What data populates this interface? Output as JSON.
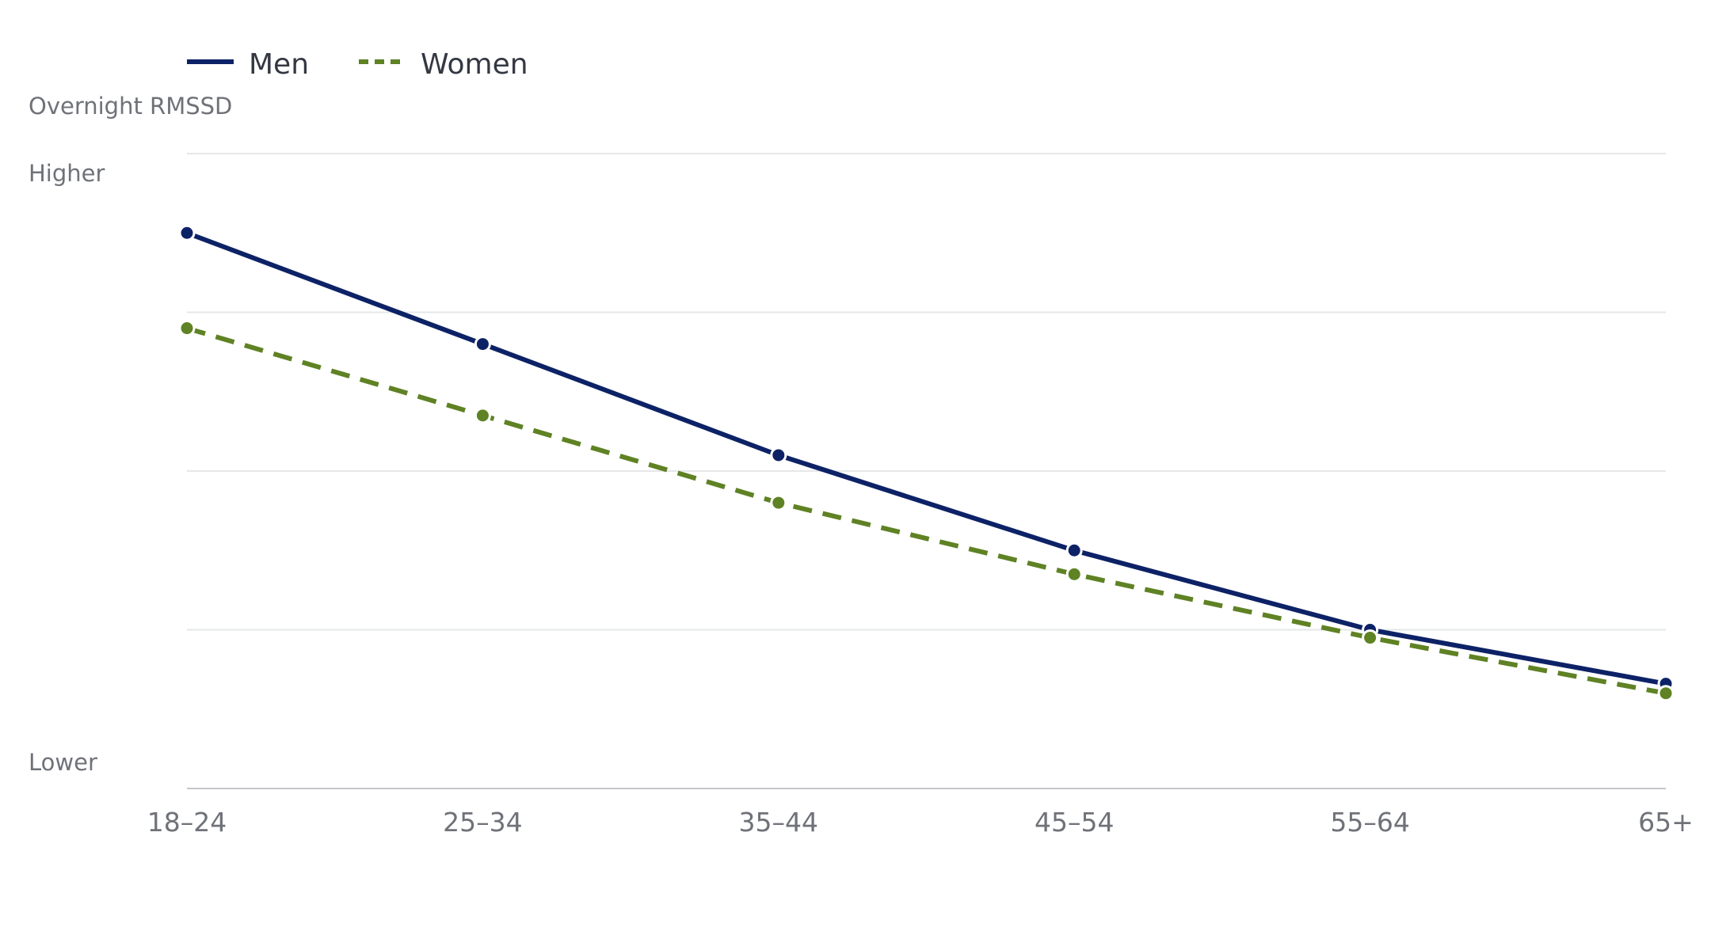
{
  "chart_data": {
    "type": "line",
    "ylabel": "Overnight RMSSD",
    "y_top_label": "Higher",
    "y_bottom_label": "Lower",
    "categories": [
      "18–24",
      "25–34",
      "35–44",
      "45–54",
      "55–64",
      "65+"
    ],
    "ylim": [
      0,
      4
    ],
    "grid": true,
    "legend_position": "top-left",
    "series": [
      {
        "name": "Men",
        "values": [
          3.5,
          2.8,
          2.1,
          1.5,
          1.0,
          0.66
        ],
        "color": "#0d2266",
        "style": "solid"
      },
      {
        "name": "Women",
        "values": [
          2.9,
          2.35,
          1.8,
          1.35,
          0.95,
          0.6
        ],
        "color": "#5f8224",
        "style": "dashed"
      }
    ]
  }
}
